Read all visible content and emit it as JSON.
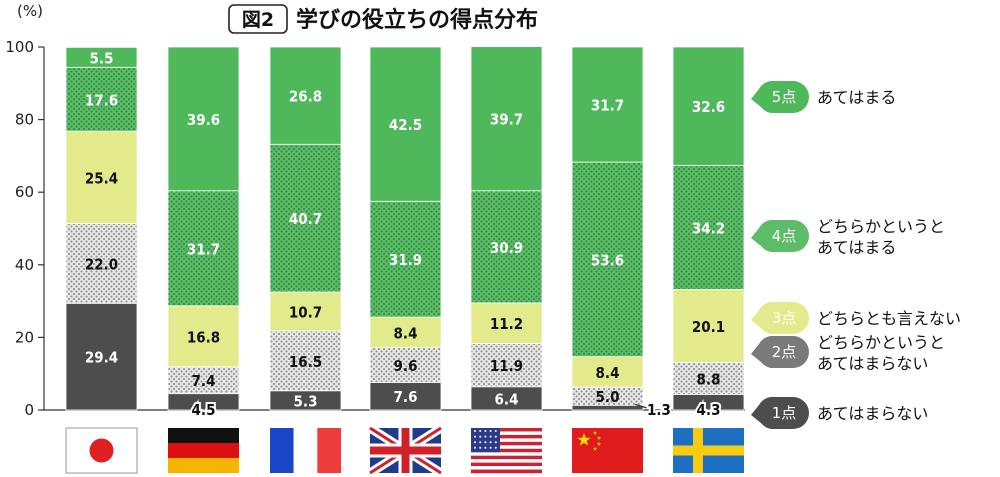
{
  "header": {
    "fig_label": "図2",
    "title": "学びの役立ちの得点分布"
  },
  "chart_data": {
    "type": "bar",
    "stacked": true,
    "orientation": "vertical",
    "title": "学びの役立ちの得点分布",
    "ylabel": "(%)",
    "ylim": [
      0,
      100
    ],
    "yticks": [
      "0",
      "20",
      "40",
      "60",
      "80",
      "100"
    ],
    "categories": [
      "Japan",
      "Germany",
      "France",
      "United Kingdom",
      "United States",
      "China",
      "Sweden"
    ],
    "series": [
      {
        "badge": "1点",
        "name": "あてはまらない",
        "color": "#4d4d4d",
        "pattern": "solid",
        "values": [
          29.4,
          4.5,
          5.3,
          7.6,
          6.4,
          1.3,
          4.3
        ]
      },
      {
        "badge": "2点",
        "name_lines": [
          "どちらかというと",
          "あてはまらない"
        ],
        "color": "#b3b3b3",
        "pattern": "dots-light",
        "values": [
          22.0,
          7.4,
          16.5,
          9.6,
          11.9,
          5.0,
          8.8
        ]
      },
      {
        "badge": "3点",
        "name": "どちらとも言えない",
        "color": "#e3ea8c",
        "pattern": "solid",
        "values": [
          25.4,
          16.8,
          10.7,
          8.4,
          11.2,
          8.4,
          20.1
        ]
      },
      {
        "badge": "4点",
        "name_lines": [
          "どちらかというと",
          "あてはまる"
        ],
        "color": "#5cbc68",
        "pattern": "dots-dark",
        "values": [
          17.6,
          31.7,
          40.7,
          31.9,
          30.9,
          53.6,
          34.2
        ]
      },
      {
        "badge": "5点",
        "name": "あてはまる",
        "color": "#4eb85a",
        "pattern": "solid",
        "values": [
          5.5,
          39.6,
          26.8,
          42.5,
          39.7,
          31.7,
          32.6
        ]
      }
    ],
    "value_labels": [
      [
        "29.4",
        "4.5",
        "5.3",
        "7.6",
        "6.4",
        "1.3",
        "4.3"
      ],
      [
        "22.0",
        "7.4",
        "16.5",
        "9.6",
        "11.9",
        "5.0",
        "8.8"
      ],
      [
        "25.4",
        "16.8",
        "10.7",
        "8.4",
        "11.2",
        "8.4",
        "20.1"
      ],
      [
        "17.6",
        "31.7",
        "40.7",
        "31.9",
        "30.9",
        "53.6",
        "34.2"
      ],
      [
        "5.5",
        "39.6",
        "26.8",
        "42.5",
        "39.7",
        "31.7",
        "32.6"
      ]
    ],
    "flags": [
      "japan-flag",
      "germany-flag",
      "france-flag",
      "uk-flag",
      "usa-flag",
      "china-flag",
      "sweden-flag"
    ],
    "grid": false,
    "legend": "right"
  }
}
